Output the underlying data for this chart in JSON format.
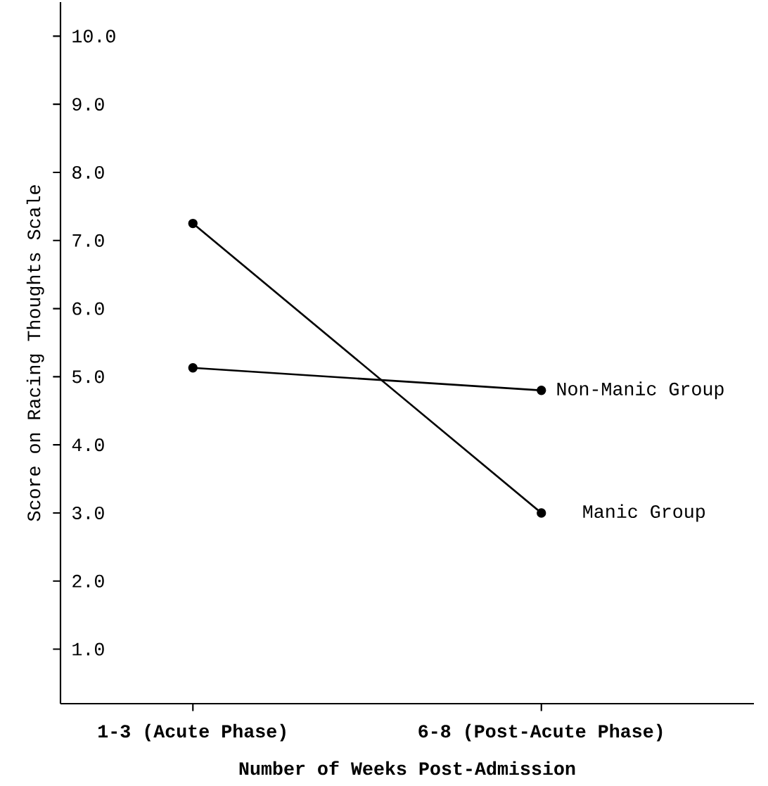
{
  "chart_data": {
    "type": "line",
    "xlabel": "Number of Weeks Post-Admission",
    "ylabel": "Score on Racing Thoughts Scale",
    "categories": [
      "1-3 (Acute Phase)",
      "6-8 (Post-Acute Phase)"
    ],
    "series": [
      {
        "name": "Manic Group",
        "color": "#000000",
        "values": [
          7.25,
          3.0
        ]
      },
      {
        "name": "Non-Manic Group",
        "color": "#000000",
        "values": [
          5.13,
          4.8
        ]
      }
    ],
    "ylim": [
      0.2,
      10.5
    ],
    "yticks": [
      {
        "value": 1,
        "label": "1.0"
      },
      {
        "value": 2,
        "label": "2.0"
      },
      {
        "value": 3,
        "label": "3.0"
      },
      {
        "value": 4,
        "label": "4.0"
      },
      {
        "value": 5,
        "label": "5.0"
      },
      {
        "value": 6,
        "label": "6.0"
      },
      {
        "value": 7,
        "label": "7.0"
      },
      {
        "value": 8,
        "label": "8.0"
      },
      {
        "value": 9,
        "label": "9.0"
      },
      {
        "value": 10,
        "label": "10.0"
      }
    ],
    "marker": "circle",
    "line_style": "solid",
    "grid": false,
    "legend": "right"
  }
}
